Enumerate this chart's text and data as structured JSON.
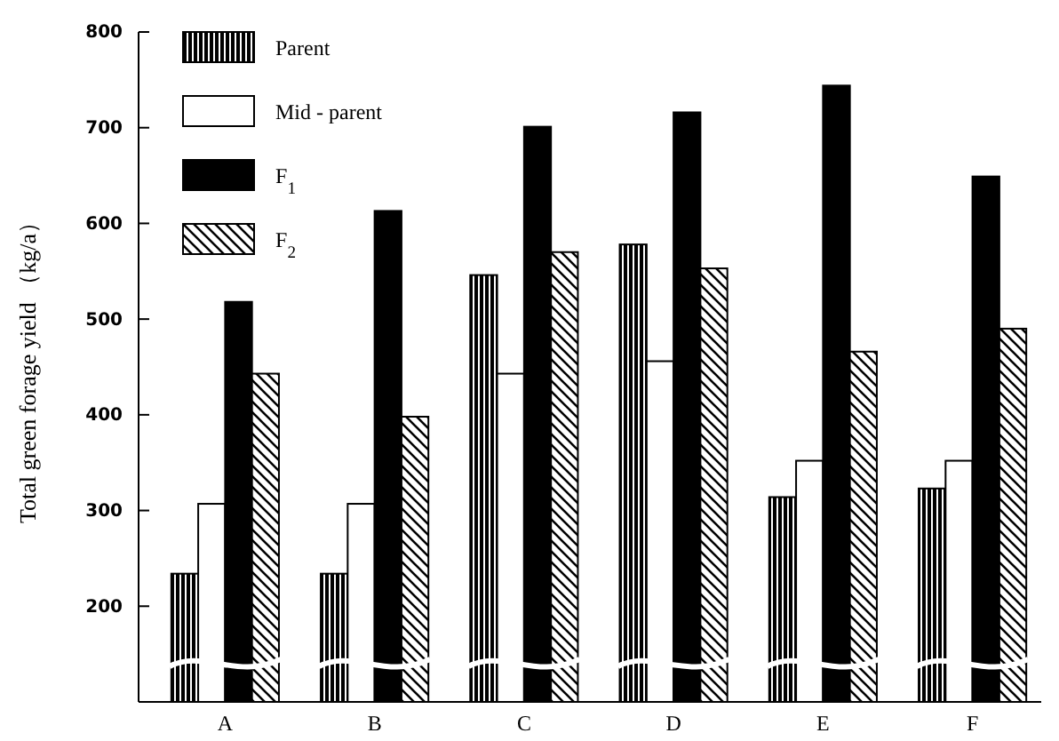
{
  "chart_data": {
    "type": "bar",
    "ylabel": "Total green forage yield （kg/a）",
    "categories": [
      "A",
      "B",
      "C",
      "D",
      "E",
      "F"
    ],
    "series": [
      {
        "name": "Parent",
        "color": "#000000",
        "values": [
          234,
          234,
          546,
          578,
          314,
          323
        ]
      },
      {
        "name": "Mid - parent",
        "color": "#ffffff",
        "values": [
          307,
          307,
          443,
          456,
          352,
          352
        ]
      },
      {
        "name": "F$_{1}$",
        "color": "#000000",
        "values": [
          518,
          613,
          701,
          716,
          744,
          649
        ]
      },
      {
        "name": "F$_{2}$",
        "color": "#000000",
        "values": [
          443,
          398,
          570,
          553,
          466,
          490
        ]
      }
    ],
    "ylim": [
      100,
      800
    ],
    "yticks": [
      200,
      300,
      400,
      500,
      600,
      700,
      800
    ],
    "legend": "top left"
  }
}
